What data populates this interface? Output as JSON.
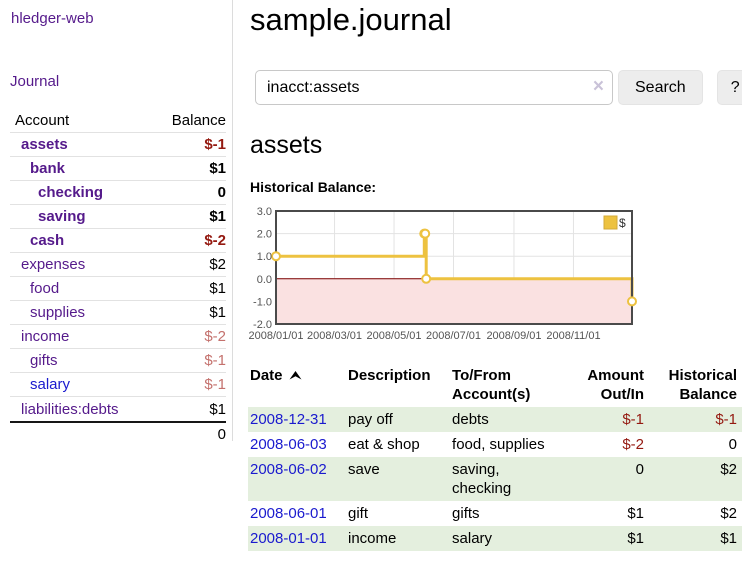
{
  "app": {
    "title": "hledger-web"
  },
  "colors": {
    "link_purple": "#551a8b",
    "link_blue": "#1a1ace",
    "negative_strong": "#941910",
    "negative_soft": "#c4716d",
    "row_green": "#e4efde",
    "button_bg": "#ededed"
  },
  "sidebar": {
    "journal_link": "Journal",
    "accounts_table": {
      "headers": {
        "account": "Account",
        "balance": "Balance"
      },
      "rows": [
        {
          "name": "assets",
          "depth": 1,
          "bold": true,
          "balance": "$-1",
          "balance_tone": "negative"
        },
        {
          "name": "bank",
          "depth": 2,
          "bold": true,
          "balance": "$1",
          "balance_tone": null
        },
        {
          "name": "checking",
          "depth": 3,
          "bold": true,
          "balance": "0",
          "balance_tone": null
        },
        {
          "name": "saving",
          "depth": 3,
          "bold": true,
          "balance": "$1",
          "balance_tone": null
        },
        {
          "name": "cash",
          "depth": 2,
          "bold": true,
          "balance": "$-2",
          "balance_tone": "negative"
        },
        {
          "name": "expenses",
          "depth": 1,
          "bold": false,
          "balance": "$2",
          "balance_tone": null
        },
        {
          "name": "food",
          "depth": 2,
          "bold": false,
          "balance": "$1",
          "balance_tone": null
        },
        {
          "name": "supplies",
          "depth": 2,
          "bold": false,
          "balance": "$1",
          "balance_tone": null
        },
        {
          "name": "income",
          "depth": 1,
          "bold": false,
          "balance": "$-2",
          "balance_tone": "negative-soft"
        },
        {
          "name": "gifts",
          "depth": 2,
          "bold": false,
          "balance": "$-1",
          "balance_tone": "negative-soft"
        },
        {
          "name": "salary",
          "depth": 2,
          "bold": false,
          "balance": "$-1",
          "balance_tone": "negative-soft",
          "link_color": "blue"
        },
        {
          "name": "liabilities:debts",
          "depth": 1,
          "bold": false,
          "balance": "$1",
          "balance_tone": null
        }
      ],
      "total": "0"
    }
  },
  "main": {
    "title": "sample.journal",
    "search": {
      "value": "inacct:assets",
      "clear_icon": "×",
      "button": "Search",
      "help_button": "?"
    },
    "account_heading": "assets",
    "chart_label": "Historical Balance:"
  },
  "chart_data": {
    "type": "line",
    "title": "Historical Balance:",
    "series": [
      {
        "name": "$",
        "steps": true,
        "points": [
          [
            "2008-01-01",
            1
          ],
          [
            "2008-06-01",
            2
          ],
          [
            "2008-06-02",
            2
          ],
          [
            "2008-06-03",
            0
          ],
          [
            "2008-12-31",
            -1
          ]
        ]
      }
    ],
    "x_range": [
      "2008-01-01",
      "2008-12-31"
    ],
    "ylim": [
      -2,
      3
    ],
    "y_ticks": [
      "3.0",
      "2.0",
      "1.0",
      "0.0",
      "-1.0",
      "-2.0"
    ],
    "x_ticks": [
      "2008/01/01",
      "2008/03/01",
      "2008/05/01",
      "2008/07/01",
      "2008/09/01",
      "2008/11/01"
    ],
    "grid": true,
    "legend": {
      "label": "$",
      "position": "top-right"
    },
    "colors": {
      "series": "#edc240",
      "marker_fill": "#ffffff",
      "grid": "#e3e3e3",
      "border": "#4a4a4a",
      "negative_region": "#fae1e1",
      "zero_line": "#7d0000",
      "legend_border": "#d3a938",
      "tick_text": "#545454"
    }
  },
  "transactions": {
    "headers": [
      "Date",
      "Description",
      "To/From Account(s)",
      "Amount Out/In",
      "Historical Balance"
    ],
    "sort": {
      "column": "Date",
      "direction": "ascending"
    },
    "rows": [
      {
        "date": "2008-12-31",
        "description": "pay off",
        "accounts": "debts",
        "amount": "$-1",
        "balance": "$-1",
        "amount_tone": "negative",
        "balance_tone": "negative"
      },
      {
        "date": "2008-06-03",
        "description": "eat & shop",
        "accounts": "food, supplies",
        "amount": "$-2",
        "balance": "0",
        "amount_tone": "negative",
        "balance_tone": null
      },
      {
        "date": "2008-06-02",
        "description": "save",
        "accounts": "saving, checking",
        "amount": "0",
        "balance": "$2",
        "amount_tone": null,
        "balance_tone": null
      },
      {
        "date": "2008-06-01",
        "description": "gift",
        "accounts": "gifts",
        "amount": "$1",
        "balance": "$2",
        "amount_tone": null,
        "balance_tone": null
      },
      {
        "date": "2008-01-01",
        "description": "income",
        "accounts": "salary",
        "amount": "$1",
        "balance": "$1",
        "amount_tone": null,
        "balance_tone": null
      }
    ]
  }
}
